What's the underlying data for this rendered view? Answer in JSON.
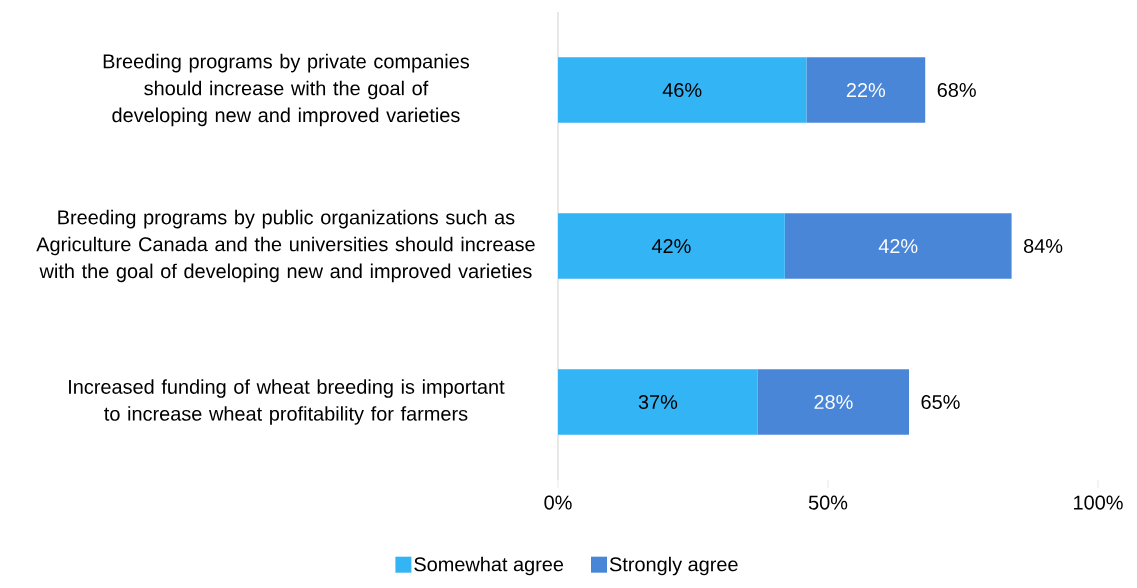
{
  "chart_data": {
    "type": "bar",
    "orientation": "horizontal",
    "stacked": true,
    "categories": [
      "Breeding programs by private companies should increase with the goal of developing new and improved varieties",
      "Breeding programs by public organizations such as Agriculture Canada and the universities should increase with the goal of developing new and improved varieties",
      "Increased funding of wheat breeding is important to increase wheat profitability for farmers"
    ],
    "series": [
      {
        "name": "Somewhat agree",
        "color": "#33b5f5",
        "values": [
          46,
          42,
          37
        ],
        "value_labels": [
          "46%",
          "42%",
          "37%"
        ]
      },
      {
        "name": "Strongly agree",
        "color": "#4a86d8",
        "values": [
          22,
          42,
          28
        ],
        "value_labels": [
          "22%",
          "42%",
          "28%"
        ]
      }
    ],
    "totals": [
      "68%",
      "84%",
      "65%"
    ],
    "xlim": [
      0,
      100
    ],
    "xticks": [
      {
        "value": 0,
        "label": "0%"
      },
      {
        "value": 50,
        "label": "50%"
      },
      {
        "value": 100,
        "label": "100%"
      }
    ],
    "legend": "bottom",
    "grid": false
  }
}
